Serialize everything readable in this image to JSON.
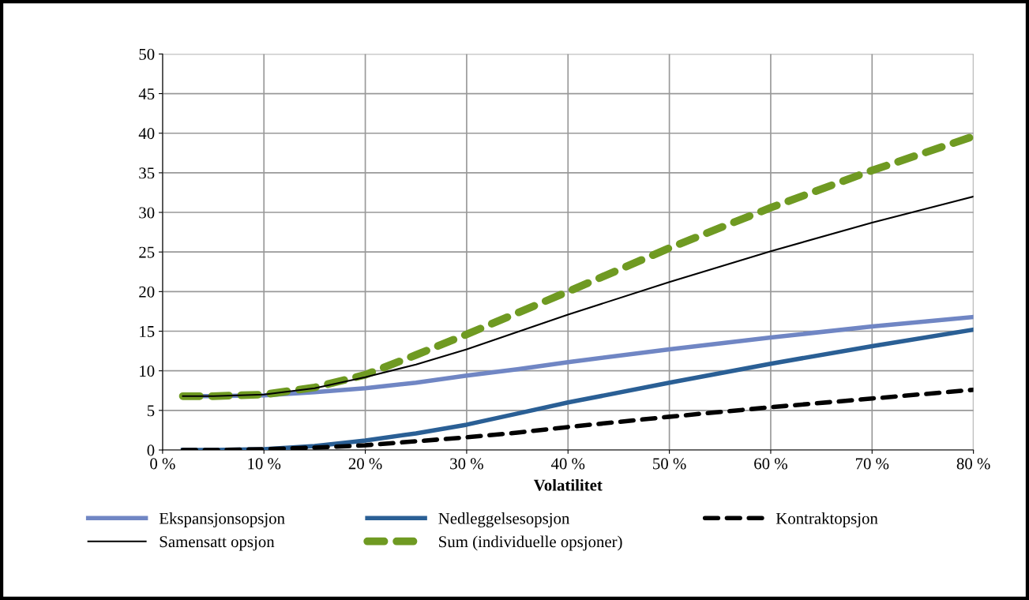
{
  "chart_data": {
    "type": "line",
    "xlabel": "Volatilitet",
    "x": [
      2,
      5,
      10,
      15,
      20,
      25,
      30,
      35,
      40,
      50,
      60,
      70,
      80
    ],
    "series": [
      {
        "name": "Ekspansjonsopsjon",
        "color": "#7086c4",
        "line_style": "solid",
        "values": [
          6.8,
          6.8,
          6.9,
          7.3,
          7.8,
          8.5,
          9.4,
          10.2,
          11.1,
          12.7,
          14.2,
          15.6,
          16.8
        ]
      },
      {
        "name": "Nedleggelsesopsjon",
        "color": "#2a5f95",
        "line_style": "solid",
        "values": [
          0,
          0,
          0.1,
          0.5,
          1.2,
          2.1,
          3.2,
          4.6,
          6.0,
          8.5,
          10.9,
          13.1,
          15.2
        ]
      },
      {
        "name": "Kontraktopsjon",
        "color": "#000000",
        "line_style": "dashed",
        "values": [
          0,
          0,
          0.1,
          0.3,
          0.6,
          1.1,
          1.6,
          2.2,
          2.9,
          4.2,
          5.4,
          6.5,
          7.6
        ]
      },
      {
        "name": "Samensatt opsjon",
        "color": "#000000",
        "line_style": "solid",
        "values": [
          6.8,
          6.8,
          7.0,
          7.8,
          9.2,
          10.8,
          12.7,
          14.9,
          17.1,
          21.2,
          25.1,
          28.7,
          32.0
        ]
      },
      {
        "name": "Sum (individuelle opsjoner)",
        "color": "#6f9a22",
        "line_style": "dashed",
        "values": [
          6.8,
          6.8,
          7.0,
          7.9,
          9.5,
          12.0,
          14.6,
          17.3,
          20.0,
          25.5,
          30.6,
          35.3,
          39.6
        ]
      }
    ],
    "xlim": [
      0,
      80
    ],
    "xticks": [
      {
        "value": 0,
        "label": "0 %"
      },
      {
        "value": 10,
        "label": "10 %"
      },
      {
        "value": 20,
        "label": "20 %"
      },
      {
        "value": 30,
        "label": "30 %"
      },
      {
        "value": 40,
        "label": "40 %"
      },
      {
        "value": 50,
        "label": "50 %"
      },
      {
        "value": 60,
        "label": "60 %"
      },
      {
        "value": 70,
        "label": "70 %"
      },
      {
        "value": 80,
        "label": "80 %"
      }
    ],
    "ylim": [
      0,
      50
    ],
    "yticks": [
      0,
      5,
      10,
      15,
      20,
      25,
      30,
      35,
      40,
      45,
      50
    ],
    "grid": true,
    "legend": "bottom",
    "marker": "none"
  }
}
